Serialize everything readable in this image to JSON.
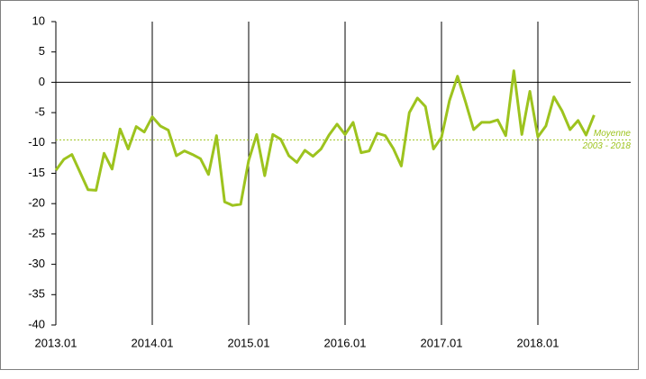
{
  "chart_data": {
    "type": "line",
    "categories": [
      "2013.01",
      null,
      null,
      null,
      null,
      null,
      null,
      null,
      null,
      null,
      null,
      null,
      "2014.01",
      null,
      null,
      null,
      null,
      null,
      null,
      null,
      null,
      null,
      null,
      null,
      "2015.01",
      null,
      null,
      null,
      null,
      null,
      null,
      null,
      null,
      null,
      null,
      null,
      "2016.01",
      null,
      null,
      null,
      null,
      null,
      null,
      null,
      null,
      null,
      null,
      null,
      "2017.01",
      null,
      null,
      null,
      null,
      null,
      null,
      null,
      null,
      null,
      null,
      null,
      "2018.01",
      null,
      null,
      null,
      null,
      null,
      null,
      null
    ],
    "series": [
      {
        "color": "#9dc31e",
        "values": [
          -14.5,
          -12.7,
          -11.9,
          -14.8,
          -17.7,
          -17.8,
          -11.7,
          -14.3,
          -7.7,
          -11.0,
          -7.3,
          -8.2,
          -5.7,
          -7.2,
          -7.9,
          -12.1,
          -11.3,
          -11.9,
          -12.6,
          -15.2,
          -8.8,
          -19.7,
          -20.3,
          -20.1,
          -12.9,
          -8.6,
          -15.4,
          -8.6,
          -9.4,
          -12.1,
          -13.2,
          -11.2,
          -12.2,
          -11.0,
          -8.7,
          -6.9,
          -8.6,
          -6.6,
          -11.6,
          -11.3,
          -8.4,
          -8.8,
          -10.9,
          -13.8,
          -5.0,
          -2.6,
          -4.0,
          -11.0,
          -9.1,
          -3.0,
          1.0,
          -3.3,
          -7.8,
          -6.6,
          -6.6,
          -6.2,
          -8.8,
          1.9,
          -8.6,
          -1.5,
          -9.0,
          -7.2,
          -2.4,
          -4.7,
          -7.8,
          -6.3,
          -8.7,
          -5.4
        ]
      }
    ],
    "reference_line": {
      "value": -9.5,
      "color": "#9dc31e",
      "label": [
        "Moyenne",
        "2003 - 2018"
      ]
    },
    "ylim": [
      -40,
      10
    ],
    "yticks": [
      10,
      5,
      0,
      -5,
      -10,
      -15,
      -20,
      -25,
      -30,
      -35,
      -40
    ]
  }
}
